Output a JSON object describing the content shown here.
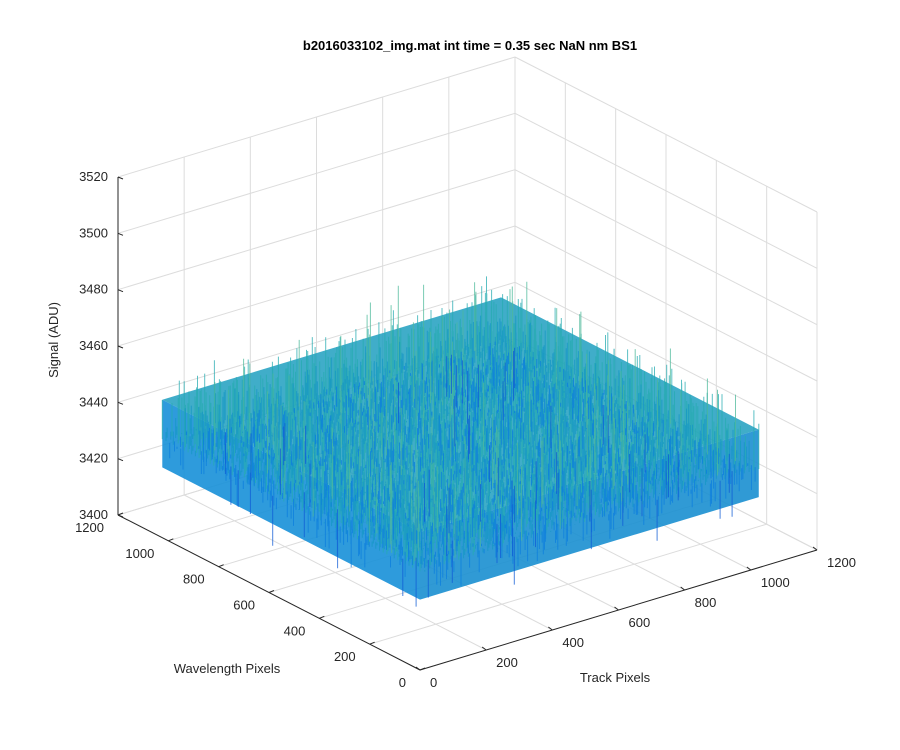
{
  "chart_data": {
    "type": "surface",
    "title": "b2016033102_img.mat int time = 0.35 sec  NaN nm BS1",
    "xlabel": "Track Pixels",
    "ylabel": "Wavelength Pixels",
    "zlabel": "Signal (ADU)",
    "xlim": [
      0,
      1200
    ],
    "ylim": [
      0,
      1200
    ],
    "zlim": [
      3400,
      3520
    ],
    "x_ticks": [
      "0",
      "200",
      "400",
      "600",
      "800",
      "1000",
      "1200"
    ],
    "y_ticks": [
      "0",
      "200",
      "400",
      "600",
      "800",
      "1000",
      "1200"
    ],
    "z_ticks": [
      "3400",
      "3420",
      "3440",
      "3460",
      "3480",
      "3500",
      "3520"
    ],
    "data_extent": {
      "x": [
        0,
        1024
      ],
      "y": [
        0,
        1024
      ]
    },
    "signal_mean": 3441,
    "signal_noise_range": [
      3410,
      3495
    ],
    "grid": true,
    "colormap": "parula",
    "colors": [
      "#0f5bd6",
      "#0c7ede",
      "#1597c4",
      "#26abb0",
      "#4cb89a",
      "#7dbf7c",
      "#b0be59"
    ]
  }
}
